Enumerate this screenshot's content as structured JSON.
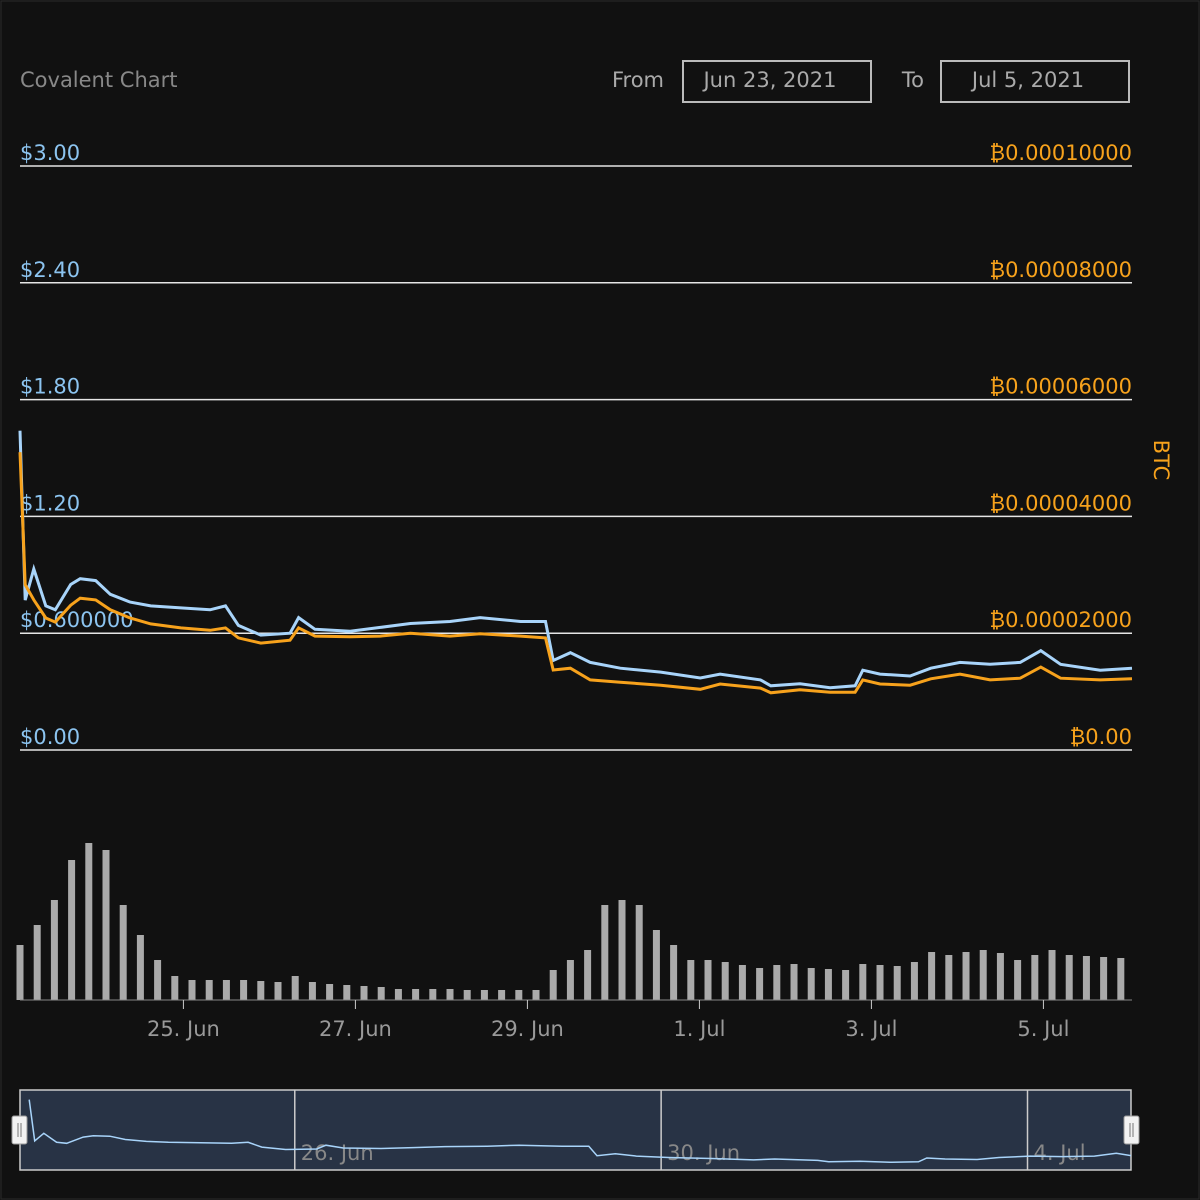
{
  "chart_data": {
    "type": "line",
    "title": "Covalent Chart",
    "from_label": "From",
    "from_date": "Jun 23, 2021",
    "to_label": "To",
    "to_date": "Jul 5, 2021",
    "x": [
      0.1,
      0.16,
      0.26,
      0.4,
      0.51,
      0.69,
      0.8,
      0.98,
      1.15,
      1.38,
      1.62,
      1.97,
      2.31,
      2.49,
      2.64,
      2.9,
      3.24,
      3.34,
      3.53,
      3.94,
      4.29,
      4.64,
      5.1,
      5.45,
      5.92,
      6.21,
      6.3,
      6.5,
      6.73,
      7.08,
      7.55,
      8.01,
      8.24,
      8.71,
      8.83,
      9.17,
      9.52,
      9.81,
      9.9,
      10.1,
      10.45,
      10.69,
      11.03,
      11.38,
      11.73,
      11.97,
      12.2,
      12.66,
      13.03
    ],
    "xlim": [
      0.1,
      13.03
    ],
    "xticks": [
      {
        "value": 2,
        "label": "25. Jun"
      },
      {
        "value": 4,
        "label": "27. Jun"
      },
      {
        "value": 6,
        "label": "29. Jun"
      },
      {
        "value": 8,
        "label": "1. Jul"
      },
      {
        "value": 10,
        "label": "3. Jul"
      },
      {
        "value": 12,
        "label": "5. Jul"
      }
    ],
    "ylim": [
      0,
      3
    ],
    "yticks": [
      {
        "value": 3,
        "label": "$3.00"
      },
      {
        "value": 2.4,
        "label": "$2.40"
      },
      {
        "value": 1.8,
        "label": "$1.80"
      },
      {
        "value": 1.2,
        "label": "$1.20"
      },
      {
        "value": 0.6,
        "label": "$0.600000"
      },
      {
        "value": 0,
        "label": "$0.00"
      }
    ],
    "y2lim": [
      0,
      0.0001
    ],
    "y2ticks": [
      {
        "value": 0.0001,
        "label": "₿0.00010000"
      },
      {
        "value": 8e-05,
        "label": "₿0.00008000"
      },
      {
        "value": 6e-05,
        "label": "₿0.00006000"
      },
      {
        "value": 4e-05,
        "label": "₿0.00004000"
      },
      {
        "value": 2e-05,
        "label": "₿0.00002000"
      },
      {
        "value": 0,
        "label": "₿0.00"
      }
    ],
    "y2label": "BTC",
    "grid": true,
    "series": [
      {
        "color": "#a8d4fa",
        "values": [
          1.64,
          0.77,
          0.93,
          0.74,
          0.72,
          0.85,
          0.88,
          0.87,
          0.8,
          0.76,
          0.74,
          0.73,
          0.72,
          0.74,
          0.64,
          0.59,
          0.6,
          0.68,
          0.62,
          0.61,
          0.63,
          0.65,
          0.66,
          0.68,
          0.66,
          0.66,
          0.46,
          0.5,
          0.45,
          0.42,
          0.4,
          0.37,
          0.39,
          0.36,
          0.33,
          0.34,
          0.32,
          0.33,
          0.41,
          0.39,
          0.38,
          0.42,
          0.45,
          0.44,
          0.45,
          0.51,
          0.44,
          0.41,
          0.42
        ]
      },
      {
        "color": "#f7a21c",
        "axis": "y2",
        "values": [
          5.1e-05,
          2.83e-05,
          2.57e-05,
          2.26e-05,
          2.19e-05,
          2.48e-05,
          2.6e-05,
          2.57e-05,
          2.4e-05,
          2.26e-05,
          2.16e-05,
          2.09e-05,
          2.05e-05,
          2.09e-05,
          1.92e-05,
          1.83e-05,
          1.88e-05,
          2.09e-05,
          1.95e-05,
          1.94e-05,
          1.95e-05,
          2e-05,
          1.95e-05,
          1.99e-05,
          1.95e-05,
          1.92e-05,
          1.37e-05,
          1.4e-05,
          1.2e-05,
          1.16e-05,
          1.11e-05,
          1.04e-05,
          1.13e-05,
          1.06e-05,
          9.8e-06,
          1.03e-05,
          9.9e-06,
          9.9e-06,
          1.2e-05,
          1.13e-05,
          1.11e-05,
          1.22e-05,
          1.3e-05,
          1.2e-05,
          1.23e-05,
          1.42e-05,
          1.23e-05,
          1.2e-05,
          1.22e-05
        ]
      }
    ],
    "volume": {
      "type": "bar",
      "color": "#aaaaaa",
      "ylim": [
        0,
        160
      ],
      "x": [
        0.1,
        0.3,
        0.5,
        0.7,
        0.9,
        1.1,
        1.3,
        1.5,
        1.7,
        1.9,
        2.1,
        2.3,
        2.5,
        2.7,
        2.9,
        3.1,
        3.3,
        3.5,
        3.7,
        3.9,
        4.1,
        4.3,
        4.5,
        4.7,
        4.9,
        5.1,
        5.3,
        5.5,
        5.7,
        5.9,
        6.1,
        6.3,
        6.5,
        6.7,
        6.9,
        7.1,
        7.3,
        7.5,
        7.7,
        7.9,
        8.1,
        8.3,
        8.5,
        8.7,
        8.9,
        9.1,
        9.3,
        9.5,
        9.7,
        9.9,
        10.1,
        10.3,
        10.5,
        10.7,
        10.9,
        11.1,
        11.3,
        11.5,
        11.7,
        11.9,
        12.1,
        12.3,
        12.5,
        12.7,
        12.9
      ],
      "values": [
        55,
        75,
        100,
        140,
        157,
        150,
        95,
        65,
        40,
        24,
        20,
        20,
        20,
        20,
        19,
        18,
        24,
        18,
        16,
        15,
        14,
        13,
        11,
        11,
        11,
        11,
        10,
        10,
        10,
        10,
        10,
        30,
        40,
        50,
        95,
        100,
        95,
        70,
        55,
        40,
        40,
        38,
        35,
        32,
        35,
        36,
        32,
        31,
        30,
        36,
        35,
        34,
        38,
        48,
        45,
        48,
        50,
        47,
        40,
        45,
        50,
        45,
        44,
        43,
        42
      ]
    },
    "navigator": {
      "xlim": [
        0,
        12.13
      ],
      "xticks": [
        {
          "value": 3,
          "label": "26. Jun"
        },
        {
          "value": 7,
          "label": "30. Jun"
        },
        {
          "value": 11,
          "label": "4. Jul"
        }
      ],
      "ylim": [
        0.2,
        1.8
      ]
    }
  }
}
